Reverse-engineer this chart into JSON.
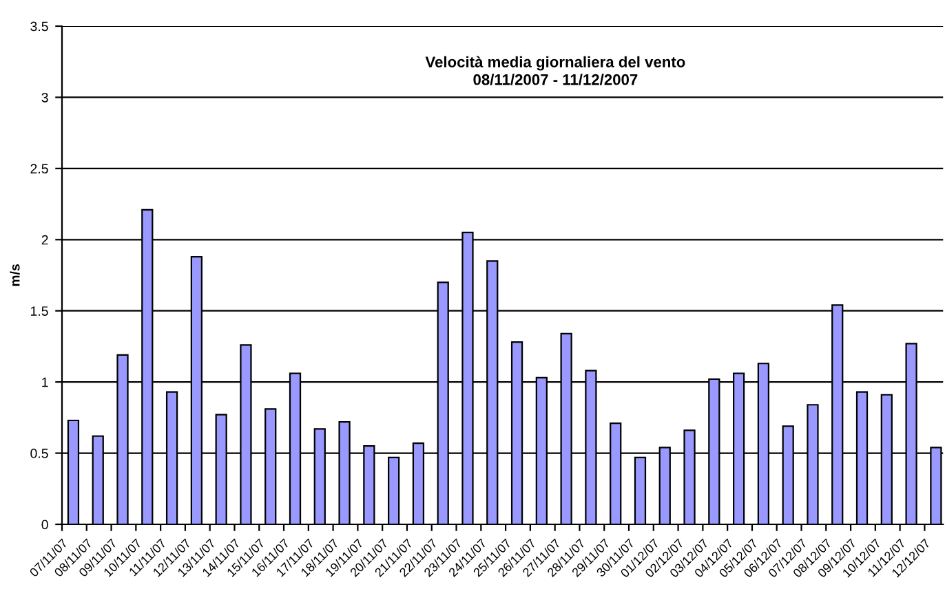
{
  "chart_data": {
    "type": "bar",
    "title": "Velocità media giornaliera del vento\n08/11/2007 - 11/12/2007",
    "ylabel": "m/s",
    "categories": [
      "07/11/07",
      "08/11/07",
      "09/11/07",
      "10/11/07",
      "11/11/07",
      "12/11/07",
      "13/11/07",
      "14/11/07",
      "15/11/07",
      "16/11/07",
      "17/11/07",
      "18/11/07",
      "19/11/07",
      "20/11/07",
      "21/11/07",
      "22/11/07",
      "23/11/07",
      "24/11/07",
      "25/11/07",
      "26/11/07",
      "27/11/07",
      "28/11/07",
      "29/11/07",
      "30/11/07",
      "01/12/07",
      "02/12/07",
      "03/12/07",
      "04/12/07",
      "05/12/07",
      "06/12/07",
      "07/12/07",
      "08/12/07",
      "09/12/07",
      "10/12/07",
      "11/12/07",
      "12/12/07"
    ],
    "values": [
      0.73,
      0.62,
      1.19,
      2.21,
      0.93,
      1.88,
      0.77,
      1.26,
      0.81,
      1.06,
      0.67,
      0.72,
      0.55,
      0.47,
      0.57,
      1.7,
      2.05,
      1.85,
      1.28,
      1.03,
      1.34,
      1.08,
      0.71,
      0.47,
      0.54,
      0.66,
      1.02,
      1.06,
      1.13,
      0.69,
      0.84,
      1.54,
      0.93,
      0.91,
      1.27,
      0.54
    ],
    "color": "#9999ff",
    "ylim": [
      0,
      3.5
    ],
    "yticks": [
      0,
      0.5,
      1,
      1.5,
      2,
      2.5,
      3,
      3.5
    ],
    "grid": "y"
  }
}
